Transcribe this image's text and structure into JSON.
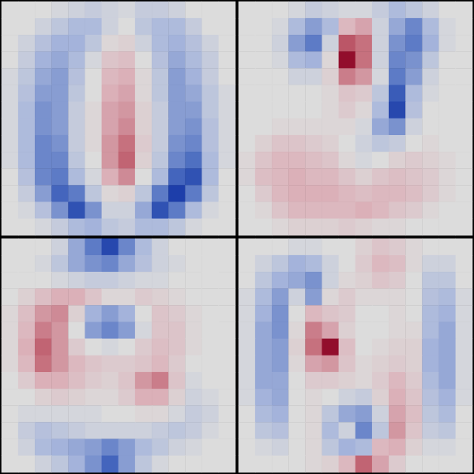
{
  "chart_data": [
    {
      "type": "heatmap",
      "zlim": [
        -1,
        1
      ],
      "tick_labels": false,
      "cells": [
        [
          0,
          0,
          0,
          -0.05,
          -0.1,
          -0.15,
          -0.1,
          -0.05,
          -0.15,
          -0.15,
          -0.1,
          0,
          0,
          0
        ],
        [
          0,
          0,
          -0.1,
          -0.2,
          -0.3,
          -0.3,
          -0.1,
          0,
          -0.2,
          -0.3,
          -0.3,
          -0.15,
          0,
          0
        ],
        [
          0,
          -0.1,
          -0.25,
          -0.35,
          -0.35,
          -0.2,
          0.05,
          0.1,
          -0.1,
          -0.3,
          -0.35,
          -0.25,
          -0.1,
          0
        ],
        [
          0,
          -0.15,
          -0.35,
          -0.4,
          -0.3,
          -0.05,
          0.2,
          0.25,
          0,
          -0.25,
          -0.4,
          -0.3,
          -0.15,
          0
        ],
        [
          -0.05,
          -0.2,
          -0.4,
          -0.45,
          -0.25,
          0,
          0.3,
          0.35,
          0.05,
          -0.2,
          -0.45,
          -0.35,
          -0.15,
          0
        ],
        [
          -0.05,
          -0.25,
          -0.45,
          -0.45,
          -0.2,
          0,
          0.35,
          0.4,
          0.05,
          -0.2,
          -0.45,
          -0.4,
          -0.2,
          -0.05
        ],
        [
          -0.05,
          -0.3,
          -0.5,
          -0.45,
          -0.15,
          0.05,
          0.4,
          0.45,
          0.1,
          -0.15,
          -0.45,
          -0.45,
          -0.2,
          -0.05
        ],
        [
          -0.05,
          -0.3,
          -0.5,
          -0.45,
          -0.15,
          0.05,
          0.4,
          0.5,
          0.1,
          -0.15,
          -0.45,
          -0.5,
          -0.25,
          -0.05
        ],
        [
          -0.05,
          -0.3,
          -0.55,
          -0.5,
          -0.15,
          0.05,
          0.45,
          0.6,
          0.15,
          -0.15,
          -0.5,
          -0.55,
          -0.25,
          -0.05
        ],
        [
          -0.05,
          -0.3,
          -0.55,
          -0.55,
          -0.2,
          0,
          0.45,
          0.65,
          0.1,
          -0.2,
          -0.55,
          -0.65,
          -0.3,
          -0.05
        ],
        [
          0,
          -0.25,
          -0.55,
          -0.6,
          -0.3,
          -0.05,
          0.35,
          0.5,
          0,
          -0.3,
          -0.7,
          -0.8,
          -0.3,
          0
        ],
        [
          0,
          -0.15,
          -0.45,
          -0.7,
          -0.6,
          -0.2,
          0.05,
          0.1,
          -0.2,
          -0.6,
          -0.9,
          -0.6,
          -0.2,
          0
        ],
        [
          0,
          -0.05,
          -0.25,
          -0.5,
          -0.8,
          -0.5,
          -0.1,
          -0.1,
          -0.4,
          -0.8,
          -0.6,
          -0.3,
          -0.05,
          0
        ],
        [
          0,
          0,
          -0.05,
          -0.15,
          -0.3,
          -0.35,
          -0.2,
          -0.15,
          -0.3,
          -0.3,
          -0.2,
          -0.05,
          0,
          0
        ]
      ]
    },
    {
      "type": "heatmap",
      "zlim": [
        -1,
        1
      ],
      "tick_labels": false,
      "cells": [
        [
          0,
          0,
          0,
          -0.05,
          -0.15,
          -0.1,
          -0.05,
          -0.05,
          -0.15,
          -0.3,
          -0.2,
          -0.1,
          0,
          0
        ],
        [
          0,
          0,
          -0.05,
          -0.3,
          -0.45,
          -0.3,
          0.3,
          0.4,
          -0.1,
          -0.4,
          -0.55,
          -0.3,
          -0.05,
          0
        ],
        [
          0,
          0,
          -0.1,
          -0.45,
          -0.6,
          -0.1,
          0.7,
          0.6,
          -0.1,
          -0.5,
          -0.6,
          -0.35,
          -0.05,
          0
        ],
        [
          0,
          0,
          -0.05,
          -0.3,
          -0.35,
          0.05,
          0.95,
          0.6,
          -0.1,
          -0.55,
          -0.5,
          -0.2,
          0,
          0
        ],
        [
          0,
          0,
          0,
          -0.1,
          -0.1,
          0.1,
          0.55,
          0.45,
          -0.05,
          -0.6,
          -0.45,
          -0.1,
          0,
          0
        ],
        [
          0,
          0,
          0,
          0,
          0,
          0.05,
          0.2,
          0.15,
          -0.2,
          -0.75,
          -0.3,
          -0.05,
          0,
          0
        ],
        [
          0,
          0,
          0,
          0,
          0,
          0.05,
          0.15,
          0.05,
          -0.3,
          -0.85,
          -0.25,
          0,
          0,
          0
        ],
        [
          0,
          0,
          0.05,
          0.05,
          0.05,
          0.05,
          0.05,
          -0.05,
          -0.4,
          -0.5,
          -0.1,
          0,
          0,
          0
        ],
        [
          0,
          0.1,
          0.2,
          0.2,
          0.15,
          0.1,
          0,
          -0.1,
          -0.2,
          -0.15,
          0,
          0.05,
          0,
          0
        ],
        [
          0.05,
          0.2,
          0.3,
          0.3,
          0.25,
          0.2,
          0.05,
          -0.05,
          0,
          0.1,
          0.15,
          0.1,
          0.05,
          0
        ],
        [
          0.05,
          0.25,
          0.3,
          0.35,
          0.3,
          0.3,
          0.2,
          0.1,
          0.2,
          0.25,
          0.2,
          0.15,
          0.05,
          0
        ],
        [
          0,
          0.15,
          0.3,
          0.35,
          0.35,
          0.35,
          0.3,
          0.25,
          0.3,
          0.3,
          0.25,
          0.15,
          0.05,
          0
        ],
        [
          0,
          0.05,
          0.2,
          0.3,
          0.3,
          0.3,
          0.3,
          0.35,
          0.3,
          0.2,
          0.15,
          0.05,
          0,
          0
        ],
        [
          0,
          0,
          0.05,
          0.1,
          0.1,
          0.1,
          0.15,
          0.1,
          0.05,
          0.05,
          0,
          0,
          0,
          0
        ]
      ]
    },
    {
      "type": "heatmap",
      "zlim": [
        -1,
        1
      ],
      "tick_labels": false,
      "cells": [
        [
          0,
          0,
          0,
          -0.1,
          -0.4,
          -0.6,
          -0.85,
          -0.55,
          -0.3,
          -0.1,
          0,
          0,
          0,
          0
        ],
        [
          0,
          0,
          -0.05,
          -0.2,
          -0.4,
          -0.5,
          -0.55,
          -0.4,
          -0.25,
          -0.1,
          -0.05,
          0,
          0,
          0
        ],
        [
          0,
          0,
          0,
          -0.05,
          -0.1,
          -0.15,
          -0.15,
          -0.1,
          -0.05,
          -0.05,
          0,
          0,
          0,
          0
        ],
        [
          0,
          0.1,
          0.25,
          0.35,
          0.35,
          0.2,
          0.05,
          0.05,
          0.15,
          0.1,
          0.05,
          0,
          0,
          0
        ],
        [
          0.05,
          0.25,
          0.45,
          0.5,
          0.1,
          -0.35,
          -0.45,
          -0.35,
          0,
          0.2,
          0.15,
          0.05,
          0,
          0
        ],
        [
          0.05,
          0.3,
          0.55,
          0.45,
          0,
          -0.45,
          -0.55,
          -0.45,
          -0.05,
          0.2,
          0.2,
          0.05,
          0,
          0
        ],
        [
          0.05,
          0.35,
          0.65,
          0.45,
          0.15,
          0,
          -0.05,
          0,
          0.15,
          0.25,
          0.2,
          0.05,
          0,
          0
        ],
        [
          0.05,
          0.3,
          0.6,
          0.45,
          0.3,
          0.2,
          0.15,
          0.15,
          0.2,
          0.3,
          0.15,
          0,
          0,
          0
        ],
        [
          0,
          0.15,
          0.35,
          0.35,
          0.25,
          0.15,
          0.1,
          0.2,
          0.45,
          0.55,
          0.2,
          -0.05,
          0,
          0
        ],
        [
          0,
          0,
          0.1,
          0.15,
          0.1,
          0.05,
          0.05,
          0.15,
          0.35,
          0.35,
          0.1,
          -0.1,
          -0.05,
          0
        ],
        [
          0,
          -0.05,
          -0.05,
          -0.05,
          -0.05,
          -0.05,
          0,
          0,
          0.05,
          0.05,
          -0.05,
          -0.15,
          -0.1,
          0
        ],
        [
          0,
          -0.15,
          -0.25,
          -0.2,
          -0.15,
          -0.1,
          -0.1,
          -0.1,
          -0.1,
          -0.15,
          -0.2,
          -0.15,
          -0.05,
          0
        ],
        [
          0,
          -0.1,
          -0.3,
          -0.35,
          -0.4,
          -0.45,
          -0.55,
          -0.45,
          -0.3,
          -0.2,
          -0.1,
          -0.05,
          0,
          0
        ],
        [
          0,
          0,
          -0.1,
          -0.2,
          -0.35,
          -0.5,
          -0.7,
          -0.45,
          -0.2,
          -0.05,
          0,
          0,
          0,
          0
        ]
      ]
    },
    {
      "type": "heatmap",
      "zlim": [
        -1,
        1
      ],
      "tick_labels": false,
      "cells": [
        [
          0,
          0,
          0,
          -0.05,
          -0.05,
          0,
          0,
          0.1,
          0.2,
          0.15,
          0.05,
          0,
          0,
          0
        ],
        [
          0,
          -0.1,
          -0.2,
          -0.35,
          -0.3,
          -0.1,
          0,
          0.15,
          0.3,
          0.25,
          0.05,
          -0.1,
          -0.1,
          0
        ],
        [
          0,
          -0.2,
          -0.35,
          -0.4,
          -0.5,
          -0.1,
          0.05,
          0.1,
          0.2,
          0.15,
          0,
          -0.2,
          -0.2,
          0
        ],
        [
          -0.05,
          -0.3,
          -0.45,
          -0.1,
          -0.45,
          0.05,
          0.15,
          0.05,
          0.05,
          0.05,
          0,
          -0.25,
          -0.3,
          -0.05
        ],
        [
          -0.05,
          -0.35,
          -0.5,
          0,
          0.3,
          0.2,
          0.15,
          0,
          0,
          0.05,
          0,
          -0.3,
          -0.35,
          -0.05
        ],
        [
          -0.05,
          -0.4,
          -0.5,
          0.05,
          0.55,
          0.4,
          0.1,
          0,
          0,
          0.05,
          0.05,
          -0.3,
          -0.4,
          -0.05
        ],
        [
          -0.05,
          -0.4,
          -0.45,
          0.1,
          0.6,
          0.95,
          0.25,
          0,
          0.05,
          0.1,
          0.1,
          -0.35,
          -0.4,
          -0.05
        ],
        [
          -0.05,
          -0.4,
          -0.45,
          0.05,
          0.4,
          0.45,
          0.2,
          0.05,
          0.1,
          0.15,
          0.1,
          -0.35,
          -0.4,
          -0.05
        ],
        [
          -0.05,
          -0.4,
          -0.4,
          0,
          0.15,
          0.15,
          0.1,
          0.05,
          0.15,
          0.3,
          0.15,
          -0.3,
          -0.4,
          -0.05
        ],
        [
          -0.05,
          -0.35,
          -0.4,
          0,
          0.05,
          0,
          -0.1,
          -0.15,
          0.1,
          0.35,
          0.2,
          -0.25,
          -0.35,
          -0.05
        ],
        [
          0,
          -0.3,
          -0.35,
          0,
          0.05,
          -0.2,
          -0.4,
          -0.45,
          -0.1,
          0.4,
          0.25,
          -0.2,
          -0.3,
          0
        ],
        [
          0,
          -0.2,
          -0.25,
          0,
          0.05,
          -0.3,
          -0.1,
          -0.55,
          -0.2,
          0.45,
          0.2,
          -0.15,
          -0.2,
          0
        ],
        [
          0,
          -0.05,
          -0.1,
          0,
          0.05,
          -0.2,
          -0.35,
          -0.3,
          0.3,
          0.35,
          0.1,
          -0.05,
          -0.05,
          0
        ],
        [
          0,
          0,
          0,
          0,
          0.05,
          0.1,
          0.3,
          0.65,
          0.4,
          0.15,
          0,
          0,
          0,
          0
        ]
      ]
    }
  ]
}
